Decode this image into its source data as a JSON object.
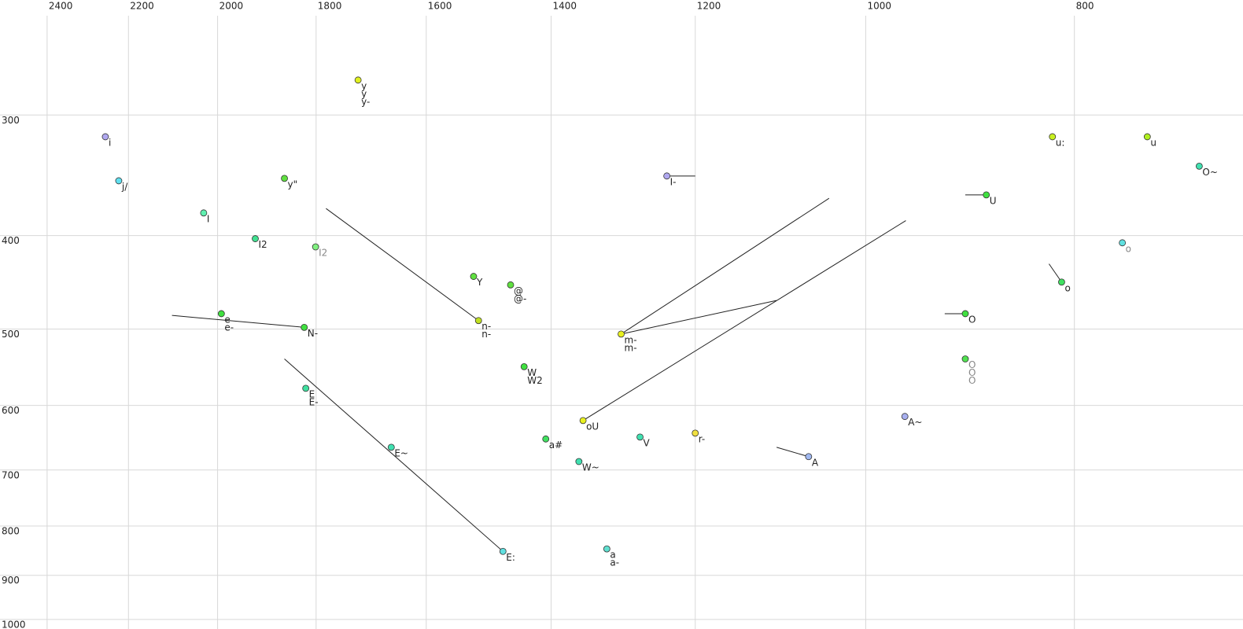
{
  "chart_data": {
    "type": "scatter",
    "xlim": [
      2524,
      668
    ],
    "ylim": [
      228,
      1023
    ],
    "xscale": "log",
    "yscale": "log",
    "grid": true,
    "xticks": [
      2400,
      2200,
      2000,
      1800,
      1600,
      1400,
      1200,
      1000,
      800
    ],
    "yticks": [
      300,
      400,
      500,
      600,
      700,
      800,
      900,
      1000
    ],
    "points": [
      {
        "x": 2255,
        "y": 316,
        "color": "#b0a8f0",
        "labels": [
          "i"
        ]
      },
      {
        "x": 2223,
        "y": 351,
        "color": "#60e0f0",
        "labels": [
          "j/"
        ]
      },
      {
        "x": 2030,
        "y": 379,
        "color": "#60f0b0",
        "labels": [
          "I"
        ]
      },
      {
        "x": 1921,
        "y": 403,
        "color": "#40e090",
        "labels": [
          "I2"
        ]
      },
      {
        "x": 1862,
        "y": 349,
        "color": "#60e040",
        "labels": [
          "y\""
        ]
      },
      {
        "x": 1801,
        "y": 411,
        "color": "#80f080",
        "labels": [
          "I2"
        ],
        "label_color": "#888888"
      },
      {
        "x": 1721,
        "y": 276,
        "color": "#e0f020",
        "labels": [
          "y",
          "y",
          "y-"
        ]
      },
      {
        "x": 1992,
        "y": 482,
        "color": "#40e040",
        "labels": [
          "e",
          "e-"
        ]
      },
      {
        "x": 1823,
        "y": 498,
        "color": "#40e040",
        "labels": [
          "N-"
        ]
      },
      {
        "x": 1820,
        "y": 576,
        "color": "#40e0a0",
        "labels": [
          "E",
          "E-"
        ]
      },
      {
        "x": 1661,
        "y": 663,
        "color": "#40e0b0",
        "labels": [
          "E~"
        ]
      },
      {
        "x": 1474,
        "y": 850,
        "color": "#60e0e0",
        "labels": [
          "E:"
        ]
      },
      {
        "x": 1521,
        "y": 441,
        "color": "#60e040",
        "labels": [
          "Y"
        ]
      },
      {
        "x": 1462,
        "y": 450,
        "color": "#60e040",
        "labels": [
          "@",
          "@-"
        ]
      },
      {
        "x": 1513,
        "y": 490,
        "color": "#c0e020",
        "labels": [
          "n-",
          "n-"
        ]
      },
      {
        "x": 1441,
        "y": 547,
        "color": "#40e040",
        "labels": [
          "W",
          "W2"
        ]
      },
      {
        "x": 1408,
        "y": 650,
        "color": "#40e060",
        "labels": [
          "a#"
        ]
      },
      {
        "x": 1353,
        "y": 622,
        "color": "#e8f020",
        "labels": [
          "oU"
        ]
      },
      {
        "x": 1359,
        "y": 686,
        "color": "#40e0b0",
        "labels": [
          "W~"
        ]
      },
      {
        "x": 1319,
        "y": 845,
        "color": "#60e0d0",
        "labels": [
          "a",
          "a-"
        ]
      },
      {
        "x": 1299,
        "y": 506,
        "color": "#e8f020",
        "labels": [
          "m-",
          "m-"
        ]
      },
      {
        "x": 1273,
        "y": 647,
        "color": "#40e0b0",
        "labels": [
          "V"
        ]
      },
      {
        "x": 1237,
        "y": 347,
        "color": "#b0a8f0",
        "labels": [
          "I-"
        ]
      },
      {
        "x": 1200,
        "y": 641,
        "color": "#f0e040",
        "labels": [
          "r-"
        ]
      },
      {
        "x": 1063,
        "y": 678,
        "color": "#a0b8f0",
        "labels": [
          "A"
        ]
      },
      {
        "x": 959,
        "y": 616,
        "color": "#a8b0f0",
        "labels": [
          "A~"
        ]
      },
      {
        "x": 899,
        "y": 482,
        "color": "#40e040",
        "labels": [
          "O"
        ]
      },
      {
        "x": 899,
        "y": 537,
        "color": "#50e050",
        "labels": [
          "O",
          "O",
          "O"
        ],
        "label_color": "#888888"
      },
      {
        "x": 879,
        "y": 363,
        "color": "#40e040",
        "labels": [
          "U"
        ]
      },
      {
        "x": 819,
        "y": 316,
        "color": "#c8f020",
        "labels": [
          "u:"
        ]
      },
      {
        "x": 811,
        "y": 447,
        "color": "#40e060",
        "labels": [
          "o"
        ]
      },
      {
        "x": 760,
        "y": 407,
        "color": "#60e0e0",
        "labels": [
          "o"
        ],
        "label_color": "#888888"
      },
      {
        "x": 740,
        "y": 316,
        "color": "#b0f020",
        "labels": [
          "u"
        ]
      },
      {
        "x": 700,
        "y": 339,
        "color": "#40e0b0",
        "labels": [
          "O~"
        ]
      }
    ],
    "segments": [
      {
        "x": [
          1781,
          1513
        ],
        "y": [
          375,
          490
        ]
      },
      {
        "x": [
          2100,
          1823
        ],
        "y": [
          484,
          498
        ]
      },
      {
        "x": [
          1862,
          1474
        ],
        "y": [
          537,
          850
        ]
      },
      {
        "x": [
          1299,
          1040
        ],
        "y": [
          506,
          366
        ]
      },
      {
        "x": [
          1353,
          958
        ],
        "y": [
          622,
          386
        ]
      },
      {
        "x": [
          1299,
          1100
        ],
        "y": [
          506,
          467
        ]
      },
      {
        "x": [
          1237,
          1200
        ],
        "y": [
          347,
          347
        ]
      },
      {
        "x": [
          899,
          879
        ],
        "y": [
          363,
          363
        ]
      },
      {
        "x": [
          919,
          899
        ],
        "y": [
          482,
          482
        ]
      },
      {
        "x": [
          822,
          811
        ],
        "y": [
          428,
          447
        ]
      },
      {
        "x": [
          1100,
          1063
        ],
        "y": [
          663,
          678
        ]
      }
    ]
  }
}
